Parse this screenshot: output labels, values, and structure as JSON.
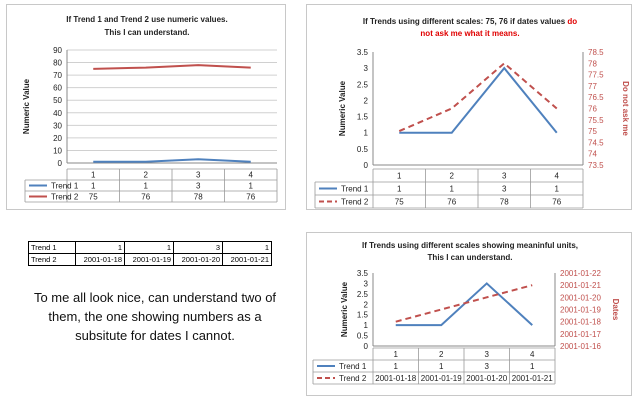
{
  "chart_data": [
    {
      "type": "line",
      "title": "If Trend 1 and Trend 2 use numeric values. This I can understand.",
      "ylabel": "Numeric Value",
      "ylim": [
        0,
        90
      ],
      "yticks": [
        "0",
        "10",
        "20",
        "30",
        "40",
        "50",
        "60",
        "70",
        "80",
        "90"
      ],
      "categories": [
        "1",
        "2",
        "3",
        "4"
      ],
      "series": [
        {
          "name": "Trend 1",
          "values": [
            1,
            1,
            3,
            1
          ],
          "labels": [
            "1",
            "1",
            "3",
            "1"
          ],
          "color": "#4f81bd",
          "dash": false
        },
        {
          "name": "Trend 2",
          "values": [
            75,
            76,
            78,
            76
          ],
          "labels": [
            "75",
            "76",
            "78",
            "76"
          ],
          "color": "#c0504d",
          "dash": false
        }
      ]
    },
    {
      "type": "line",
      "title_black": "If Trends using different scales: 75, 76 if dates values ",
      "title_red": "do not ask me what it means.",
      "ylabel": "Numeric Value",
      "ylabel_right": "Do not ask me",
      "ylim": [
        0,
        3.5
      ],
      "yticks": [
        "0",
        "0.5",
        "1",
        "1.5",
        "2",
        "2.5",
        "3",
        "3.5"
      ],
      "ylim_right": [
        73.5,
        78.5
      ],
      "yticks_right": [
        "73.5",
        "74",
        "74.5",
        "75",
        "75.5",
        "76",
        "76.5",
        "77",
        "77.5",
        "78",
        "78.5"
      ],
      "categories": [
        "1",
        "2",
        "3",
        "4"
      ],
      "series": [
        {
          "name": "Trend 1",
          "values": [
            1,
            1,
            3,
            1
          ],
          "labels": [
            "1",
            "1",
            "3",
            "1"
          ],
          "color": "#4f81bd",
          "dash": false,
          "axis": "left"
        },
        {
          "name": "Trend 2",
          "values": [
            75,
            76,
            78,
            76
          ],
          "labels": [
            "75",
            "76",
            "78",
            "76"
          ],
          "color": "#c0504d",
          "dash": true,
          "axis": "right"
        }
      ]
    },
    {
      "type": "line",
      "title": "If Trends using different scales showing meaninful units, This I can understand.",
      "ylabel": "Numeric Value",
      "ylabel_right": "Dates",
      "ylim": [
        0,
        3.5
      ],
      "yticks": [
        "0",
        "0.5",
        "1",
        "1.5",
        "2",
        "2.5",
        "3",
        "3.5"
      ],
      "ylim_right": [
        "2001-01-16",
        "2001-01-22"
      ],
      "yticks_right": [
        "2001-01-16",
        "2001-01-17",
        "2001-01-18",
        "2001-01-19",
        "2001-01-20",
        "2001-01-21",
        "2001-01-22"
      ],
      "categories": [
        "1",
        "2",
        "3",
        "4"
      ],
      "series": [
        {
          "name": "Trend 1",
          "values": [
            1,
            1,
            3,
            1
          ],
          "labels": [
            "1",
            "1",
            "3",
            "1"
          ],
          "color": "#4f81bd",
          "dash": false,
          "axis": "left"
        },
        {
          "name": "Trend 2",
          "values": [
            "2001-01-18",
            "2001-01-19",
            "2001-01-20",
            "2001-01-21"
          ],
          "labels": [
            "2001-01-18",
            "2001-01-19",
            "2001-01-20",
            "2001-01-21"
          ],
          "color": "#c0504d",
          "dash": true,
          "axis": "right"
        }
      ]
    }
  ],
  "table": {
    "rows": [
      {
        "label": "Trend 1",
        "cells": [
          "1",
          "1",
          "3",
          "1"
        ]
      },
      {
        "label": "Trend 2",
        "cells": [
          "2001-01-18",
          "2001-01-19",
          "2001-01-20",
          "2001-01-21"
        ]
      }
    ]
  },
  "note": {
    "text": "To me all look nice, can understand two of them, the one showing numbers as a subsitute for dates I cannot."
  }
}
